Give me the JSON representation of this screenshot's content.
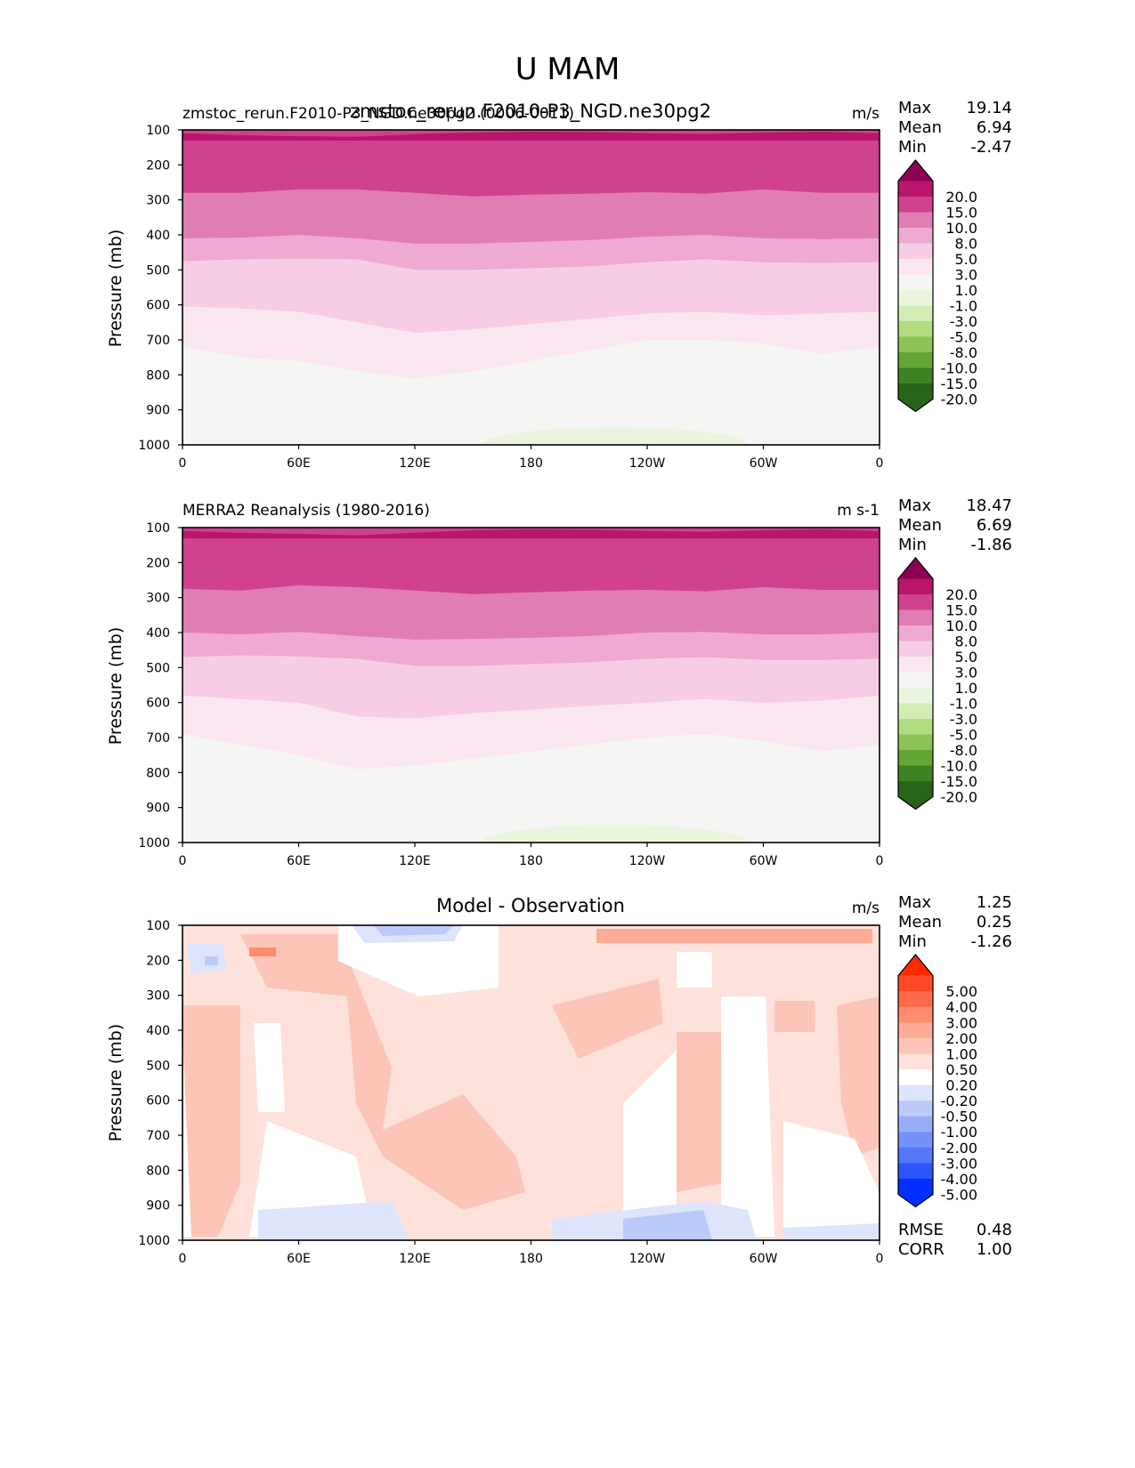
{
  "figure": {
    "title": "U MAM"
  },
  "chart_data": [
    {
      "type": "heatmap",
      "panel": "model",
      "title_left": "zmstoc_rerun.F2010-P3_NGD.ne30pg2 (0006-0011)",
      "title_center": "zmstoc_rerun.F2010-P3_NGD.ne30pg2",
      "units": "m/s",
      "stats": {
        "max_label": "Max",
        "max": "19.14",
        "mean_label": "Mean",
        "mean": "6.94",
        "min_label": "Min",
        "min": "-2.47"
      },
      "xlabel": "",
      "ylabel": "Pressure (mb)",
      "x_ticks": [
        "0",
        "60E",
        "120E",
        "180",
        "120W",
        "60W",
        "0"
      ],
      "y_ticks": [
        "100",
        "200",
        "300",
        "400",
        "500",
        "600",
        "700",
        "800",
        "900",
        "1000"
      ],
      "xlim": [
        0,
        360
      ],
      "ylim": [
        1000,
        100
      ],
      "colorbar": {
        "levels": [
          "20.0",
          "15.0",
          "10.0",
          "8.0",
          "5.0",
          "3.0",
          "1.0",
          "-1.0",
          "-3.0",
          "-5.0",
          "-8.0",
          "-10.0",
          "-15.0",
          "-20.0"
        ],
        "colors": [
          "#8e0152",
          "#b8156b",
          "#d0418f",
          "#e07db5",
          "#eeaad3",
          "#f7cde5",
          "#fae6f0",
          "#f5f5f3",
          "#eaf5de",
          "#d3ecb3",
          "#b1dc80",
          "#8cc256",
          "#64a536",
          "#3f8223",
          "#276419"
        ]
      },
      "bands": [
        {
          "level": "15-20",
          "top": [
            100,
            100,
            100,
            100,
            100,
            100,
            100,
            100,
            100,
            100,
            100,
            100,
            100
          ],
          "bottom": [
            110,
            115,
            118,
            120,
            112,
            108,
            105,
            106,
            110,
            112,
            108,
            105,
            110
          ]
        },
        {
          "level": "10-15",
          "bottom": [
            280,
            280,
            270,
            270,
            280,
            290,
            285,
            282,
            278,
            282,
            270,
            280,
            280
          ]
        },
        {
          "level": "8-10",
          "bottom": [
            410,
            408,
            400,
            410,
            425,
            425,
            420,
            415,
            405,
            400,
            410,
            412,
            410
          ]
        },
        {
          "level": "5-8",
          "bottom": [
            475,
            470,
            468,
            470,
            500,
            500,
            495,
            490,
            478,
            470,
            478,
            480,
            478
          ]
        },
        {
          "level": "3-5",
          "bottom": [
            605,
            610,
            620,
            650,
            680,
            670,
            655,
            640,
            625,
            620,
            630,
            625,
            620
          ]
        },
        {
          "level": "1-3",
          "bottom": [
            720,
            750,
            760,
            790,
            810,
            790,
            760,
            730,
            700,
            700,
            710,
            740,
            720
          ]
        },
        {
          "level": "-1-1",
          "bottom": [
            880,
            940,
            930,
            950,
            940,
            880,
            840,
            820,
            810,
            830,
            850,
            880,
            900
          ]
        }
      ]
    },
    {
      "type": "heatmap",
      "panel": "observation",
      "title_left": "MERRA2 Reanalysis (1980-2016)",
      "units": "m s-1",
      "stats": {
        "max_label": "Max",
        "max": "18.47",
        "mean_label": "Mean",
        "mean": "6.69",
        "min_label": "Min",
        "min": "-1.86"
      },
      "ylabel": "Pressure (mb)",
      "x_ticks": [
        "0",
        "60E",
        "120E",
        "180",
        "120W",
        "60W",
        "0"
      ],
      "y_ticks": [
        "100",
        "200",
        "300",
        "400",
        "500",
        "600",
        "700",
        "800",
        "900",
        "1000"
      ],
      "xlim": [
        0,
        360
      ],
      "ylim": [
        1000,
        100
      ],
      "colorbar": {
        "levels": [
          "20.0",
          "15.0",
          "10.0",
          "8.0",
          "5.0",
          "3.0",
          "1.0",
          "-1.0",
          "-3.0",
          "-5.0",
          "-8.0",
          "-10.0",
          "-15.0",
          "-20.0"
        ],
        "colors": [
          "#8e0152",
          "#b8156b",
          "#d0418f",
          "#e07db5",
          "#eeaad3",
          "#f7cde5",
          "#fae6f0",
          "#f5f5f3",
          "#eaf5de",
          "#d3ecb3",
          "#b1dc80",
          "#8cc256",
          "#64a536",
          "#3f8223",
          "#276419"
        ]
      },
      "bands": [
        {
          "level": "15-20",
          "bottom": [
            110,
            115,
            118,
            122,
            115,
            108,
            105,
            106,
            110,
            112,
            108,
            105,
            110
          ]
        },
        {
          "level": "10-15",
          "bottom": [
            275,
            280,
            265,
            270,
            280,
            290,
            285,
            280,
            278,
            282,
            270,
            278,
            278
          ]
        },
        {
          "level": "8-10",
          "bottom": [
            400,
            405,
            398,
            410,
            420,
            418,
            415,
            410,
            400,
            398,
            405,
            405,
            400
          ]
        },
        {
          "level": "5-8",
          "bottom": [
            470,
            465,
            468,
            475,
            495,
            495,
            490,
            485,
            475,
            470,
            478,
            478,
            475
          ]
        },
        {
          "level": "3-5",
          "bottom": [
            580,
            590,
            600,
            640,
            645,
            630,
            620,
            610,
            600,
            590,
            600,
            595,
            580
          ]
        },
        {
          "level": "1-3",
          "bottom": [
            690,
            720,
            750,
            790,
            780,
            760,
            740,
            720,
            700,
            690,
            710,
            740,
            720
          ]
        },
        {
          "level": "-1-1",
          "bottom": [
            880,
            940,
            930,
            950,
            920,
            870,
            840,
            810,
            800,
            820,
            850,
            880,
            900
          ]
        }
      ]
    },
    {
      "type": "heatmap",
      "panel": "difference",
      "title_center": "Model - Observation",
      "units": "m/s",
      "stats": {
        "max_label": "Max",
        "max": "1.25",
        "mean_label": "Mean",
        "mean": "0.25",
        "min_label": "Min",
        "min": "-1.26"
      },
      "extra_stats": {
        "rmse_label": "RMSE",
        "rmse": "0.48",
        "corr_label": "CORR",
        "corr": "1.00"
      },
      "ylabel": "Pressure (mb)",
      "x_ticks": [
        "0",
        "60E",
        "120E",
        "180",
        "120W",
        "60W",
        "0"
      ],
      "y_ticks": [
        "100",
        "200",
        "300",
        "400",
        "500",
        "600",
        "700",
        "800",
        "900",
        "1000"
      ],
      "xlim": [
        0,
        360
      ],
      "ylim": [
        1000,
        100
      ],
      "colorbar": {
        "levels": [
          "5.00",
          "4.00",
          "3.00",
          "2.00",
          "1.00",
          "0.50",
          "0.20",
          "-0.20",
          "-0.50",
          "-1.00",
          "-2.00",
          "-3.00",
          "-4.00",
          "-5.00"
        ],
        "colors": [
          "#ff2a00",
          "#ff4a2a",
          "#ff6a4a",
          "#ff8c6e",
          "#fcab96",
          "#fcc5b8",
          "#fde1da",
          "#ffffff",
          "#dde4fb",
          "#bccafa",
          "#98adf8",
          "#7592f8",
          "#5577fa",
          "#2d57fc",
          "#0030ff"
        ]
      }
    }
  ]
}
